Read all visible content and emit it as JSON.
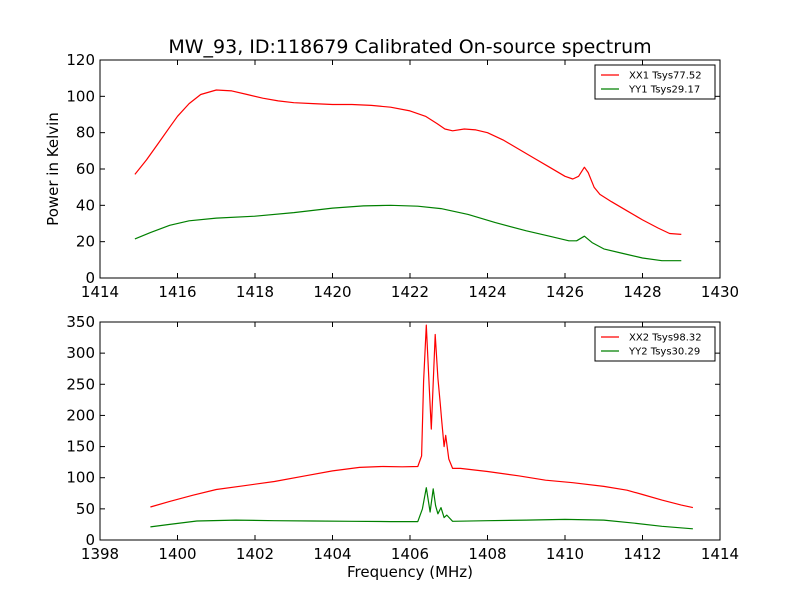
{
  "figure": {
    "title": "MW_93, ID:118679 Calibrated On-source spectrum"
  },
  "chart_data": [
    {
      "type": "line",
      "title": "MW_93, ID:118679 Calibrated On-source spectrum",
      "xlabel": "",
      "ylabel": "Power in Kelvin",
      "xlim": [
        1414,
        1430
      ],
      "ylim": [
        0,
        120
      ],
      "xticks": [
        "1414",
        "1416",
        "1418",
        "1420",
        "1422",
        "1424",
        "1426",
        "1428",
        "1430"
      ],
      "yticks": [
        "0",
        "20",
        "40",
        "60",
        "80",
        "100",
        "120"
      ],
      "grid": false,
      "legend": "top-right",
      "series": [
        {
          "name": "XX1 Tsys77.52",
          "color": "#ff0000",
          "x": [
            1414.9,
            1415.2,
            1415.5,
            1415.8,
            1416.0,
            1416.3,
            1416.6,
            1417.0,
            1417.4,
            1417.8,
            1418.2,
            1418.6,
            1419.0,
            1419.5,
            1420.0,
            1420.5,
            1421.0,
            1421.5,
            1422.0,
            1422.4,
            1422.7,
            1422.9,
            1423.1,
            1423.4,
            1423.7,
            1424.0,
            1424.4,
            1424.8,
            1425.2,
            1425.6,
            1426.0,
            1426.2,
            1426.35,
            1426.5,
            1426.6,
            1426.75,
            1426.9,
            1427.2,
            1427.6,
            1428.0,
            1428.4,
            1428.7,
            1429.0
          ],
          "values": [
            57,
            65,
            74,
            83,
            89,
            96,
            101,
            103.5,
            103,
            101,
            99,
            97.5,
            96.5,
            96,
            95.5,
            95.5,
            95,
            94,
            92,
            89,
            85,
            82,
            81,
            82,
            81.5,
            80,
            76,
            71,
            66,
            61,
            56,
            54.5,
            56,
            61,
            58,
            50,
            46,
            42,
            37,
            32,
            27.5,
            24.5,
            24
          ]
        },
        {
          "name": "YY1 Tsys29.17",
          "color": "#008000",
          "x": [
            1414.9,
            1415.3,
            1415.8,
            1416.3,
            1417.0,
            1418.0,
            1419.0,
            1420.0,
            1420.8,
            1421.5,
            1422.2,
            1422.8,
            1423.5,
            1424.2,
            1425.0,
            1425.6,
            1426.1,
            1426.3,
            1426.5,
            1426.7,
            1427.0,
            1427.5,
            1428.0,
            1428.5,
            1429.0
          ],
          "values": [
            21.5,
            25,
            29,
            31.5,
            33,
            34,
            36,
            38.5,
            39.7,
            40,
            39.5,
            38.2,
            35,
            30.5,
            26,
            23,
            20.5,
            20.5,
            23,
            19.5,
            16,
            13.5,
            11,
            9.5,
            9.5
          ]
        }
      ]
    },
    {
      "type": "line",
      "title": "",
      "xlabel": "Frequency (MHz)",
      "ylabel": "",
      "xlim": [
        1398,
        1414
      ],
      "ylim": [
        0,
        350
      ],
      "xticks": [
        "1398",
        "1400",
        "1402",
        "1404",
        "1406",
        "1408",
        "1410",
        "1412",
        "1414"
      ],
      "yticks": [
        "0",
        "50",
        "100",
        "150",
        "200",
        "250",
        "300",
        "350"
      ],
      "grid": false,
      "legend": "top-right",
      "series": [
        {
          "name": "XX2 Tsys98.32",
          "color": "#ff0000",
          "x": [
            1399.3,
            1399.8,
            1400.4,
            1401.0,
            1401.7,
            1402.5,
            1403.3,
            1404.0,
            1404.7,
            1405.3,
            1405.8,
            1406.2,
            1406.3,
            1406.35,
            1406.42,
            1406.5,
            1406.55,
            1406.65,
            1406.72,
            1406.78,
            1406.82,
            1406.88,
            1406.92,
            1407.0,
            1407.1,
            1407.3,
            1408.0,
            1408.8,
            1409.5,
            1410.2,
            1411.0,
            1411.6,
            1412.0,
            1412.5,
            1413.0,
            1413.3
          ],
          "values": [
            53,
            62,
            72,
            81,
            87,
            94,
            103,
            111,
            116.5,
            118,
            117.5,
            118,
            135,
            255,
            345,
            240,
            178,
            330,
            260,
            220,
            190,
            150,
            168,
            130,
            115,
            115,
            110,
            103,
            96,
            92,
            86,
            80,
            73,
            64,
            56,
            52
          ]
        },
        {
          "name": "YY2 Tsys30.29",
          "color": "#008000",
          "x": [
            1399.3,
            1399.8,
            1400.5,
            1401.5,
            1402.5,
            1403.5,
            1404.5,
            1405.5,
            1406.2,
            1406.32,
            1406.42,
            1406.52,
            1406.6,
            1406.66,
            1406.72,
            1406.8,
            1406.88,
            1406.95,
            1407.1,
            1408.0,
            1409.0,
            1410.0,
            1411.0,
            1411.8,
            1412.5,
            1413.3
          ],
          "values": [
            21,
            25,
            30.5,
            32,
            31,
            30.5,
            30,
            29.5,
            29.5,
            50,
            84,
            45,
            82,
            55,
            42,
            52,
            36,
            40,
            30,
            31,
            32,
            33,
            32,
            27,
            22,
            18
          ]
        }
      ]
    }
  ]
}
